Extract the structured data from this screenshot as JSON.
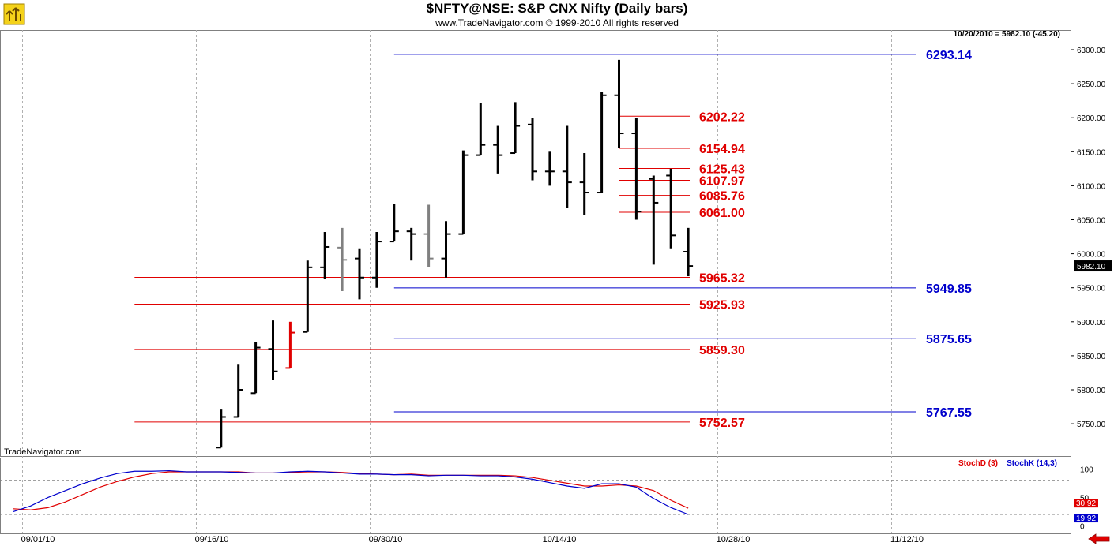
{
  "header": {
    "title": "$NFTY@NSE:  S&P CNX Nifty  (Daily bars)",
    "subtitle": "www.TradeNavigator.com © 1999-2010 All rights reserved",
    "last_bar": "10/20/2010 = 5982.10 (-45.20)",
    "watermark": "TradeNavigator.com"
  },
  "colors": {
    "bar_up": "#000000",
    "bar_gray": "#808080",
    "bar_red": "#e00000",
    "level_red": "#e00000",
    "level_blue": "#0000cc",
    "stoch_d": "#e00000",
    "stoch_k": "#0000cc",
    "grid": "#b0b0b0"
  },
  "icons": {
    "logo": "trade-navigator-logo-icon",
    "back": "red-left-arrow-icon"
  },
  "chart_data": {
    "type": "ohlc",
    "title": "$NFTY@NSE:  S&P CNX Nifty  (Daily bars)",
    "ylim": [
      5715,
      6310
    ],
    "y_ticks": [
      5750,
      5800,
      5850,
      5900,
      5950,
      6000,
      6050,
      6100,
      6150,
      6200,
      6250,
      6300
    ],
    "x_tick_labels": [
      "09/01/10",
      "09/16/10",
      "09/30/10",
      "10/14/10",
      "10/28/10",
      "11/12/10"
    ],
    "last_price": "5982.10",
    "bars": [
      {
        "day": 12,
        "open": 5715,
        "high": 5772,
        "low": 5715,
        "close": 5760,
        "color": "black"
      },
      {
        "day": 13,
        "open": 5760,
        "high": 5838,
        "low": 5760,
        "close": 5800,
        "color": "black"
      },
      {
        "day": 14,
        "open": 5795,
        "high": 5870,
        "low": 5795,
        "close": 5862,
        "color": "black"
      },
      {
        "day": 15,
        "open": 5860,
        "high": 5902,
        "low": 5815,
        "close": 5827,
        "color": "black"
      },
      {
        "day": 16,
        "open": 5832,
        "high": 5900,
        "low": 5832,
        "close": 5884,
        "color": "red"
      },
      {
        "day": 17,
        "open": 5885,
        "high": 5990,
        "low": 5885,
        "close": 5980,
        "color": "black"
      },
      {
        "day": 18,
        "open": 5980,
        "high": 6032,
        "low": 5963,
        "close": 6010,
        "color": "black"
      },
      {
        "day": 19,
        "open": 6009,
        "high": 6038,
        "low": 5945,
        "close": 5991,
        "color": "gray"
      },
      {
        "day": 20,
        "open": 5993,
        "high": 6008,
        "low": 5933,
        "close": 5965,
        "color": "black"
      },
      {
        "day": 21,
        "open": 5965,
        "high": 6032,
        "low": 5950,
        "close": 6018,
        "color": "black"
      },
      {
        "day": 22,
        "open": 6018,
        "high": 6073,
        "low": 6018,
        "close": 6033,
        "color": "black"
      },
      {
        "day": 23,
        "open": 6033,
        "high": 6038,
        "low": 5990,
        "close": 6029,
        "color": "black"
      },
      {
        "day": 24,
        "open": 6029,
        "high": 6072,
        "low": 5980,
        "close": 5993,
        "color": "gray"
      },
      {
        "day": 25,
        "open": 5993,
        "high": 6048,
        "low": 5965,
        "close": 6029,
        "color": "black"
      },
      {
        "day": 26,
        "open": 6029,
        "high": 6152,
        "low": 6029,
        "close": 6145,
        "color": "black"
      },
      {
        "day": 27,
        "open": 6145,
        "high": 6222,
        "low": 6145,
        "close": 6160,
        "color": "black"
      },
      {
        "day": 28,
        "open": 6160,
        "high": 6188,
        "low": 6118,
        "close": 6145,
        "color": "black"
      },
      {
        "day": 29,
        "open": 6148,
        "high": 6223,
        "low": 6148,
        "close": 6188,
        "color": "black"
      },
      {
        "day": 30,
        "open": 6190,
        "high": 6200,
        "low": 6108,
        "close": 6121,
        "color": "black"
      },
      {
        "day": 31,
        "open": 6121,
        "high": 6150,
        "low": 6100,
        "close": 6121,
        "color": "black"
      },
      {
        "day": 32,
        "open": 6121,
        "high": 6188,
        "low": 6068,
        "close": 6105,
        "color": "black"
      },
      {
        "day": 33,
        "open": 6105,
        "high": 6148,
        "low": 6057,
        "close": 6090,
        "color": "black"
      },
      {
        "day": 34,
        "open": 6090,
        "high": 6238,
        "low": 6090,
        "close": 6233,
        "color": "black"
      },
      {
        "day": 35,
        "open": 6233,
        "high": 6285,
        "low": 6156,
        "close": 6177,
        "color": "black"
      },
      {
        "day": 36,
        "open": 6177,
        "high": 6200,
        "low": 6050,
        "close": 6062,
        "color": "black"
      },
      {
        "day": 37,
        "open": 6110,
        "high": 6115,
        "low": 5984,
        "close": 6075,
        "color": "black"
      },
      {
        "day": 38,
        "open": 6115,
        "high": 6125,
        "low": 6008,
        "close": 6027,
        "color": "black"
      },
      {
        "day": 39,
        "open": 6003,
        "high": 6038,
        "low": 5967,
        "close": 5982,
        "color": "black"
      }
    ],
    "levels": [
      {
        "value": "6293.14",
        "color": "blue",
        "from_day": 22
      },
      {
        "value": "6202.22",
        "color": "red",
        "from_day": 35
      },
      {
        "value": "6154.94",
        "color": "red",
        "from_day": 35
      },
      {
        "value": "6125.43",
        "color": "red",
        "from_day": 35
      },
      {
        "value": "6107.97",
        "color": "red",
        "from_day": 35
      },
      {
        "value": "6085.76",
        "color": "red",
        "from_day": 35
      },
      {
        "value": "6061.00",
        "color": "red",
        "from_day": 35
      },
      {
        "value": "5965.32",
        "color": "red",
        "from_day": 7
      },
      {
        "value": "5949.85",
        "color": "blue",
        "from_day": 22
      },
      {
        "value": "5925.93",
        "color": "red",
        "from_day": 7
      },
      {
        "value": "5875.65",
        "color": "blue",
        "from_day": 22
      },
      {
        "value": "5859.30",
        "color": "red",
        "from_day": 7
      },
      {
        "value": "5767.55",
        "color": "blue",
        "from_day": 22
      },
      {
        "value": "5752.57",
        "color": "red",
        "from_day": 7
      }
    ],
    "stochastic": {
      "ylim": [
        0,
        100
      ],
      "y_ticks": [
        "100",
        "50",
        "0"
      ],
      "guide_lines": [
        80,
        20
      ],
      "legend": [
        {
          "name": "StochD (3)",
          "color": "red"
        },
        {
          "name": "StochK (14,3)",
          "color": "blue"
        }
      ],
      "last_d": "30.92",
      "last_k": "19.92",
      "d_series": [
        {
          "day": 0,
          "value": 30
        },
        {
          "day": 1,
          "value": 28
        },
        {
          "day": 2,
          "value": 32
        },
        {
          "day": 3,
          "value": 42
        },
        {
          "day": 4,
          "value": 55
        },
        {
          "day": 5,
          "value": 68
        },
        {
          "day": 6,
          "value": 78
        },
        {
          "day": 7,
          "value": 86
        },
        {
          "day": 8,
          "value": 92
        },
        {
          "day": 9,
          "value": 95
        },
        {
          "day": 10,
          "value": 95
        },
        {
          "day": 11,
          "value": 95
        },
        {
          "day": 12,
          "value": 95
        },
        {
          "day": 13,
          "value": 95
        },
        {
          "day": 14,
          "value": 93
        },
        {
          "day": 15,
          "value": 93
        },
        {
          "day": 16,
          "value": 94
        },
        {
          "day": 17,
          "value": 95
        },
        {
          "day": 18,
          "value": 95
        },
        {
          "day": 19,
          "value": 94
        },
        {
          "day": 20,
          "value": 92
        },
        {
          "day": 21,
          "value": 91
        },
        {
          "day": 22,
          "value": 90
        },
        {
          "day": 23,
          "value": 91
        },
        {
          "day": 24,
          "value": 89
        },
        {
          "day": 25,
          "value": 89
        },
        {
          "day": 26,
          "value": 89
        },
        {
          "day": 27,
          "value": 89
        },
        {
          "day": 28,
          "value": 89
        },
        {
          "day": 29,
          "value": 88
        },
        {
          "day": 30,
          "value": 85
        },
        {
          "day": 31,
          "value": 80
        },
        {
          "day": 32,
          "value": 75
        },
        {
          "day": 33,
          "value": 70
        },
        {
          "day": 34,
          "value": 70
        },
        {
          "day": 35,
          "value": 72
        },
        {
          "day": 36,
          "value": 70
        },
        {
          "day": 37,
          "value": 62
        },
        {
          "day": 38,
          "value": 45
        },
        {
          "day": 39,
          "value": 31
        }
      ],
      "k_series": [
        {
          "day": 0,
          "value": 25
        },
        {
          "day": 1,
          "value": 35
        },
        {
          "day": 2,
          "value": 50
        },
        {
          "day": 3,
          "value": 62
        },
        {
          "day": 4,
          "value": 74
        },
        {
          "day": 5,
          "value": 84
        },
        {
          "day": 6,
          "value": 92
        },
        {
          "day": 7,
          "value": 96
        },
        {
          "day": 8,
          "value": 96
        },
        {
          "day": 9,
          "value": 97
        },
        {
          "day": 10,
          "value": 95
        },
        {
          "day": 11,
          "value": 95
        },
        {
          "day": 12,
          "value": 95
        },
        {
          "day": 13,
          "value": 94
        },
        {
          "day": 14,
          "value": 93
        },
        {
          "day": 15,
          "value": 93
        },
        {
          "day": 16,
          "value": 95
        },
        {
          "day": 17,
          "value": 96
        },
        {
          "day": 18,
          "value": 95
        },
        {
          "day": 19,
          "value": 93
        },
        {
          "day": 20,
          "value": 91
        },
        {
          "day": 21,
          "value": 91
        },
        {
          "day": 22,
          "value": 90
        },
        {
          "day": 23,
          "value": 90
        },
        {
          "day": 24,
          "value": 88
        },
        {
          "day": 25,
          "value": 89
        },
        {
          "day": 26,
          "value": 89
        },
        {
          "day": 27,
          "value": 88
        },
        {
          "day": 28,
          "value": 88
        },
        {
          "day": 29,
          "value": 86
        },
        {
          "day": 30,
          "value": 82
        },
        {
          "day": 31,
          "value": 76
        },
        {
          "day": 32,
          "value": 70
        },
        {
          "day": 33,
          "value": 66
        },
        {
          "day": 34,
          "value": 74
        },
        {
          "day": 35,
          "value": 74
        },
        {
          "day": 36,
          "value": 68
        },
        {
          "day": 37,
          "value": 48
        },
        {
          "day": 38,
          "value": 32
        },
        {
          "day": 39,
          "value": 20
        }
      ]
    }
  }
}
